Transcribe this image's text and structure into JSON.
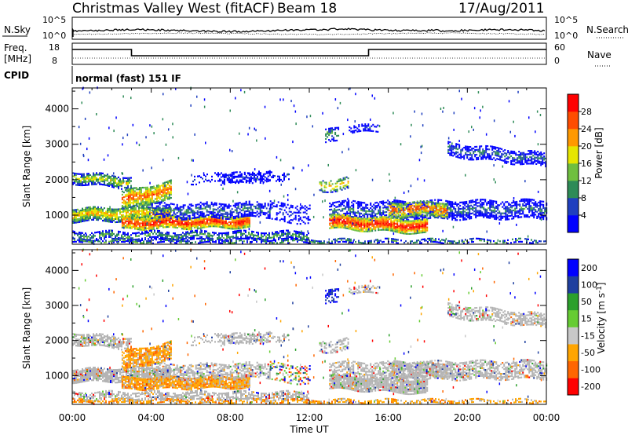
{
  "header": {
    "title": "Christmas Valley West (fitACF)",
    "beam": "Beam 18",
    "date": "17/Aug/2011"
  },
  "colors": {
    "power": [
      "#0000ff",
      "#1f3fbf",
      "#2e8b57",
      "#6fbf3f",
      "#e6e600",
      "#ff9900",
      "#ff4d00",
      "#ff0000"
    ],
    "velocity": [
      "#ff0000",
      "#ff6600",
      "#ffa500",
      "#c8c8c8",
      "#66cc33",
      "#2ca02c",
      "#1f3f9f",
      "#0000ff"
    ],
    "ground_scatter": "#b4b4b4"
  },
  "chart_data": [
    {
      "type": "line",
      "name": "noise-panel",
      "left_label": "N.Sky",
      "right_label": "N.Search",
      "left_ticks": [
        "10^5",
        "10^0"
      ],
      "right_ticks": [
        "10^5",
        "10^0"
      ]
    },
    {
      "type": "line",
      "name": "frequency-panel",
      "left_label_top": "Freq.",
      "left_label_bottom": "[MHz]",
      "right_label": "Nave",
      "left_ticks": [
        "18",
        "8"
      ],
      "right_ticks": [
        "60",
        "0"
      ],
      "freq_steps": [
        {
          "start_hour": 0,
          "end_hour": 3,
          "value": "high"
        },
        {
          "start_hour": 3,
          "end_hour": 15,
          "value": "low"
        },
        {
          "start_hour": 15,
          "end_hour": 24,
          "value": "high"
        }
      ]
    },
    {
      "type": "table",
      "name": "cpid-panel",
      "label": "CPID",
      "program": "normal (fast) 151 IF"
    },
    {
      "type": "heatmap",
      "name": "power-panel",
      "ylabel": "Slant Range [km]",
      "yticks": [
        "1000",
        "2000",
        "3000",
        "4000"
      ],
      "ylim": [
        180,
        4590
      ],
      "xlim": [
        0,
        24
      ],
      "colorbar_label": "Power [dB]",
      "colorbar_ticks": [
        "4",
        "8",
        "12",
        "16",
        "20",
        "24",
        "28"
      ],
      "colorbar_range": [
        0,
        32
      ]
    },
    {
      "type": "heatmap",
      "name": "velocity-panel",
      "ylabel": "Slant Range [km]",
      "yticks": [
        "1000",
        "2000",
        "3000",
        "4000"
      ],
      "ylim": [
        180,
        4590
      ],
      "xlim": [
        0,
        24
      ],
      "xlabel": "Time UT",
      "xticks": [
        "00:00",
        "04:00",
        "08:00",
        "12:00",
        "16:00",
        "20:00",
        "00:00"
      ],
      "colorbar_label": "Velocity [m s",
      "colorbar_label_sup": "-1",
      "colorbar_label_end": "]",
      "colorbar_ticks": [
        "200",
        "100",
        "50",
        "15",
        "-15",
        "-50",
        "-100",
        "-200"
      ]
    }
  ]
}
